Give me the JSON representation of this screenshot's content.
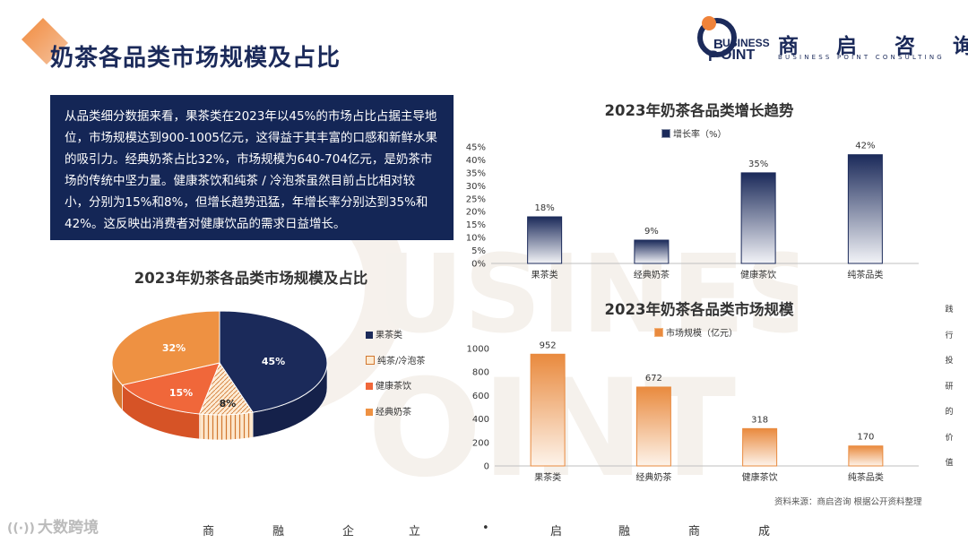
{
  "header": {
    "page_title": "奶茶各品类市场规模及占比",
    "brand_cn": "商 启 咨 询",
    "brand_en": "BUSINESS POINT CONSULTING",
    "logo_word1": "USINESS",
    "logo_word2": "OINT"
  },
  "summary_text": "从品类细分数据来看，果茶类在2023年以45%的市场占比占据主导地位，市场规模达到900-1005亿元，这得益于其丰富的口感和新鲜水果的吸引力。经典奶茶占比32%，市场规模为640-704亿元，是奶茶市场的传统中坚力量。健康茶饮和纯茶 / 冷泡茶虽然目前占比相对较小，分别为15%和8%，但增长趋势迅猛，年增长率分别达到35%和42%。这反映出消费者对健康饮品的需求日益增长。",
  "side_vertical": [
    "践",
    "行",
    "投",
    "研",
    "的",
    "价",
    "值"
  ],
  "bottom_words": [
    "商",
    "融",
    "企",
    "立",
    "•",
    "启",
    "融",
    "商",
    "成"
  ],
  "bottom_logo": "大数跨境",
  "source": "资料来源：商启咨询 根据公开资料整理",
  "colors": {
    "navy": "#1b2a5a",
    "orange": "#e98a3e",
    "red_orange": "#f0673a"
  },
  "chart_data": [
    {
      "type": "pie",
      "title": "2023年奶茶各品类市场规模及占比",
      "categories": [
        "果茶类",
        "纯茶/冷泡茶",
        "健康茶饮",
        "经典奶茶"
      ],
      "values": [
        45,
        8,
        15,
        32
      ],
      "value_labels": [
        "45%",
        "8%",
        "15%",
        "32%"
      ],
      "legend": [
        "果茶类",
        "纯茶/冷泡茶",
        "健康茶饮",
        "经典奶茶"
      ],
      "legend_position": "right",
      "colors": [
        "#1b2a5a",
        "#fde9cf",
        "#f0673a",
        "#ee9142"
      ]
    },
    {
      "type": "bar",
      "title": "2023年奶茶各品类增长趋势",
      "categories": [
        "果茶类",
        "经典奶茶",
        "健康茶饮",
        "纯茶品类"
      ],
      "series": [
        {
          "name": "增长率（%）",
          "values": [
            18,
            9,
            35,
            42
          ]
        }
      ],
      "value_labels": [
        "18%",
        "9%",
        "35%",
        "42%"
      ],
      "yticks": [
        "0%",
        "5%",
        "10%",
        "15%",
        "20%",
        "25%",
        "30%",
        "35%",
        "40%",
        "45%"
      ],
      "ylim": [
        0,
        45
      ],
      "legend_position": "top",
      "grid": false
    },
    {
      "type": "bar",
      "title": "2023年奶茶各品类市场规模",
      "categories": [
        "果茶类",
        "经典奶茶",
        "健康茶饮",
        "纯茶品类"
      ],
      "series": [
        {
          "name": "市场规模（亿元）",
          "values": [
            952,
            672,
            318,
            170
          ]
        }
      ],
      "value_labels": [
        "952",
        "672",
        "318",
        "170"
      ],
      "yticks": [
        "0",
        "200",
        "400",
        "600",
        "800",
        "1000"
      ],
      "ylim": [
        0,
        1000
      ],
      "legend_position": "top",
      "grid": false
    }
  ]
}
